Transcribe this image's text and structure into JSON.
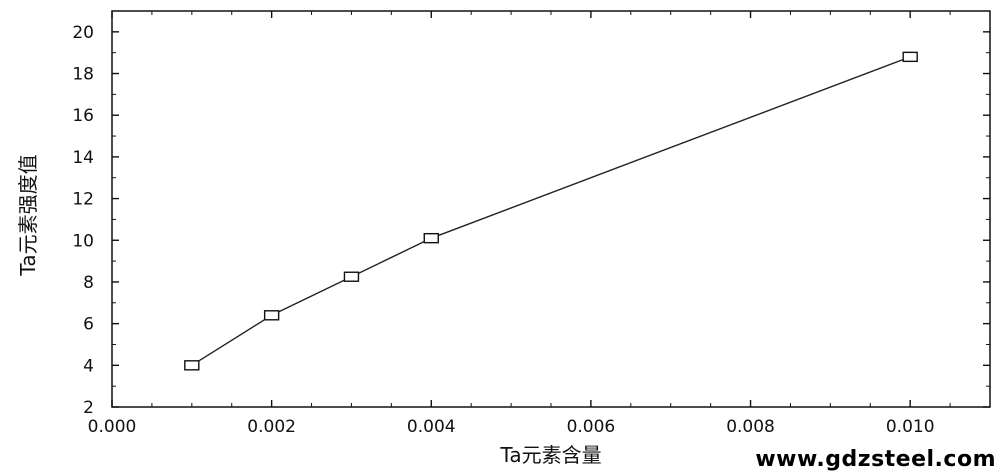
{
  "chart_data": {
    "type": "line",
    "title": "",
    "xlabel": "Ta元素含量",
    "ylabel": "Ta元素强度值",
    "xlim": [
      0.0,
      0.011
    ],
    "ylim": [
      2,
      21
    ],
    "xticks": [
      "0.000",
      "0.002",
      "0.004",
      "0.006",
      "0.008",
      "0.010"
    ],
    "yticks": [
      "2",
      "4",
      "6",
      "8",
      "10",
      "12",
      "14",
      "16",
      "18",
      "20"
    ],
    "grid": false,
    "marker": "square",
    "series": [
      {
        "x": [
          0.001,
          0.002,
          0.003,
          0.004,
          0.01
        ],
        "y": [
          4.0,
          6.4,
          8.25,
          10.1,
          18.8
        ]
      }
    ]
  },
  "watermark": "www.gdzsteel.com"
}
